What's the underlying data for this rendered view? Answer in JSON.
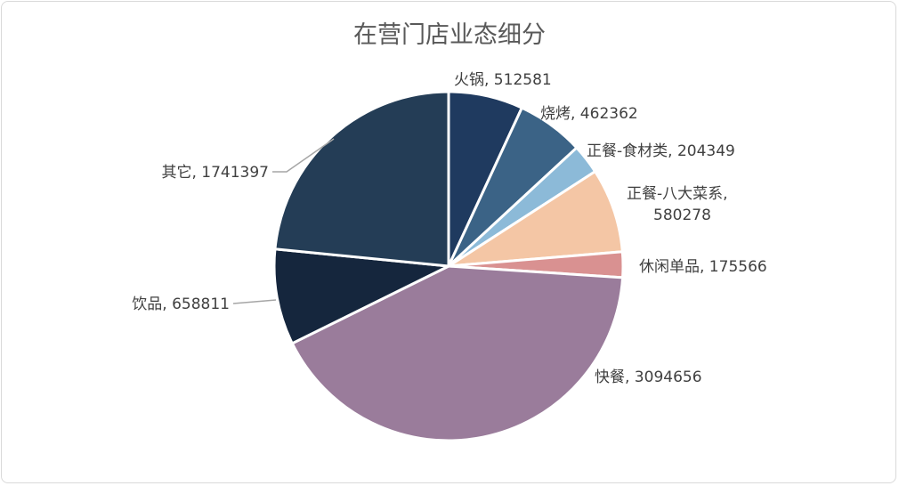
{
  "chart_data": {
    "type": "pie",
    "title": "在营门店业态细分",
    "slices": [
      {
        "label": "火锅",
        "value": 512581,
        "color": "#1f3a5f"
      },
      {
        "label": "烧烤",
        "value": 462362,
        "color": "#3b6386"
      },
      {
        "label": "正餐-食材类",
        "value": 204349,
        "color": "#8cbad8"
      },
      {
        "label": "正餐-八大菜系",
        "value": 580278,
        "color": "#f4c6a5"
      },
      {
        "label": "休闲单品",
        "value": 175566,
        "color": "#d99191"
      },
      {
        "label": "快餐",
        "value": 3094656,
        "color": "#9a7c9b"
      },
      {
        "label": "饮品",
        "value": 658811,
        "color": "#15263d"
      },
      {
        "label": "其它",
        "value": 1741397,
        "color": "#243d56"
      }
    ],
    "data_labels": [
      {
        "line1": "火锅, 512581"
      },
      {
        "line1": "烧烤, 462362"
      },
      {
        "line1": "正餐-食材类, 204349"
      },
      {
        "line1": "正餐-八大菜系,",
        "line2": "580278"
      },
      {
        "line1": "休闲单品, 175566"
      },
      {
        "line1": "快餐, 3094656"
      },
      {
        "line1": "饮品, 658811"
      },
      {
        "line1": "其它, 1741397"
      }
    ],
    "legend": "none"
  }
}
